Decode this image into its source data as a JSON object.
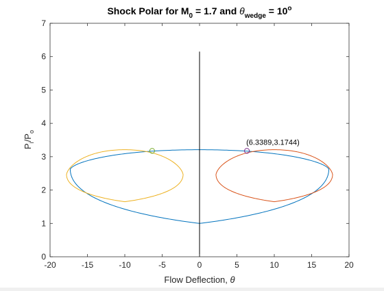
{
  "chart_data": {
    "type": "line",
    "title": {
      "prefix": "Shock Polar for M",
      "m_sub": "0",
      "mid": " = 1.7 and ",
      "theta": "θ",
      "wedge_sub": "wedge",
      "equals": " = 10",
      "sup": "o"
    },
    "xlabel": {
      "text": "Flow Deflection, ",
      "symbol": "θ"
    },
    "ylabel": {
      "p": "P",
      "i": "i",
      "slash": "/P",
      "o": "o"
    },
    "xlim": [
      -20,
      20
    ],
    "ylim": [
      0,
      7
    ],
    "xticks": [
      -20,
      -15,
      -10,
      -5,
      0,
      5,
      10,
      15,
      20
    ],
    "yticks": [
      0,
      1,
      2,
      3,
      4,
      5,
      6,
      7
    ],
    "grid": false,
    "colors": {
      "primary": "#0072bd",
      "right_reflected": "#d95319",
      "left_reflected": "#edb120",
      "vertical_line": "#000000",
      "right_marker": "#7e2f8e",
      "left_marker": "#77ac30"
    },
    "series": [
      {
        "color": "#0072bd",
        "style": "polar",
        "center_x": 0,
        "base_p": 1.0,
        "max_p": 3.2094,
        "max_deflection": 17.3,
        "max_p_at_max_deflection": 2.63
      },
      {
        "color": "#d95319",
        "style": "polar",
        "center_x": 10,
        "base_p": 1.65,
        "max_p": 3.21,
        "max_deflection": 7.8,
        "max_p_at_max_deflection": 2.47
      },
      {
        "color": "#edb120",
        "style": "polar",
        "center_x": -10,
        "base_p": 1.65,
        "max_p": 3.21,
        "max_deflection": 7.8,
        "max_p_at_max_deflection": 2.47
      },
      {
        "color": "#000000",
        "style": "vline",
        "x": 0,
        "y": [
          0,
          6.15
        ]
      }
    ],
    "markers": [
      {
        "x": 6.3389,
        "y": 3.1744,
        "color": "#7e2f8e"
      },
      {
        "x": -6.3389,
        "y": 3.1744,
        "color": "#77ac30"
      }
    ],
    "annotations": [
      {
        "text": "(6.3389,3.1744)",
        "x": 6.3389,
        "y": 3.1744
      }
    ]
  }
}
